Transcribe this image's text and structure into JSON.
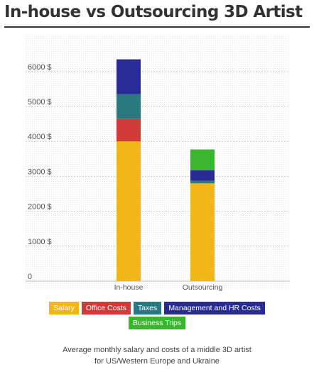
{
  "title": "In-house vs Outsourcing 3D Artist",
  "caption": {
    "line1": "Average monthly salary and costs of a middle 3D artist",
    "line2": "for US/Western Europe and Ukraine"
  },
  "chart_data": {
    "type": "bar",
    "stacked": true,
    "title": "In-house vs Outsourcing 3D Artist",
    "categories": [
      "In-house",
      "Outsourcing"
    ],
    "series": [
      {
        "name": "Salary",
        "color": "#f2b616",
        "values": [
          4000,
          2800
        ]
      },
      {
        "name": "Office Costs",
        "color": "#d23a3a",
        "values": [
          650,
          0
        ]
      },
      {
        "name": "Taxes",
        "color": "#287a80",
        "values": [
          700,
          70
        ]
      },
      {
        "name": "Management and HR Costs",
        "color": "#2a2a95",
        "values": [
          1000,
          300
        ]
      },
      {
        "name": "Business Trips",
        "color": "#3ab52e",
        "values": [
          0,
          600
        ]
      }
    ],
    "yticks": [
      "0",
      "1000 $",
      "2000 $",
      "3000 $",
      "4000 $",
      "5000 $",
      "6000 $"
    ],
    "ylim": [
      0,
      7000
    ],
    "grid": true,
    "legend_position": "bottom"
  }
}
